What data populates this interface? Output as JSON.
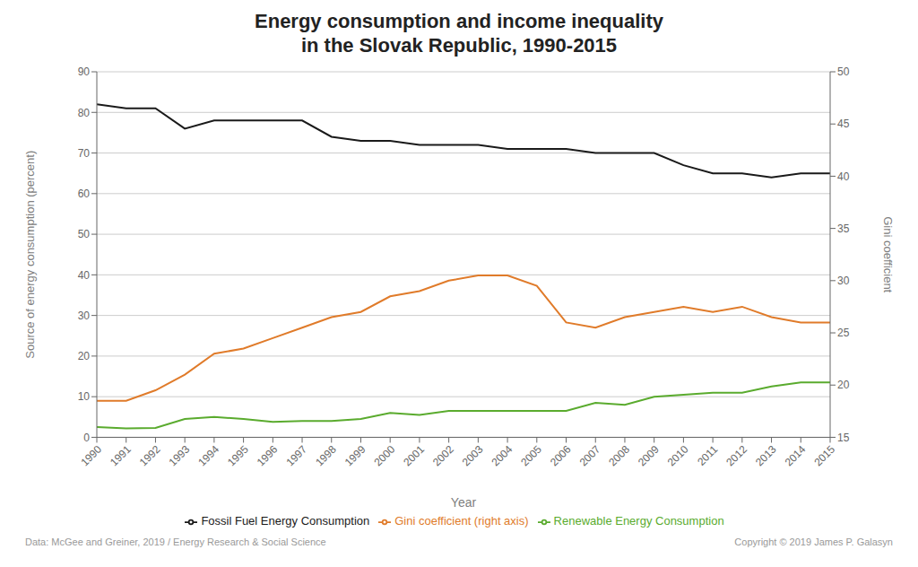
{
  "chart_data": {
    "type": "line",
    "title": "Energy consumption and income inequality\nin the Slovak Republic, 1990-2015",
    "xlabel": "Year",
    "ylabel": "Source of energy consumption (percent)",
    "y2label": "Gini coefficient",
    "x": [
      1990,
      1991,
      1992,
      1993,
      1994,
      1995,
      1996,
      1997,
      1998,
      1999,
      2000,
      2001,
      2002,
      2003,
      2004,
      2005,
      2006,
      2007,
      2008,
      2009,
      2010,
      2011,
      2012,
      2013,
      2014,
      2015
    ],
    "xlim": [
      1990,
      2015
    ],
    "xticks": [
      1990,
      1991,
      1992,
      1993,
      1994,
      1995,
      1996,
      1997,
      1998,
      1999,
      2000,
      2001,
      2002,
      2003,
      2004,
      2005,
      2006,
      2007,
      2008,
      2009,
      2010,
      2011,
      2012,
      2013,
      2014,
      2015
    ],
    "ylim": [
      0,
      90
    ],
    "yticks": [
      0,
      10,
      20,
      30,
      40,
      50,
      60,
      70,
      80,
      90
    ],
    "y2lim": [
      15,
      50
    ],
    "y2ticks": [
      15,
      20,
      25,
      30,
      35,
      40,
      45,
      50
    ],
    "grid": true,
    "legend": "bottom",
    "series": [
      {
        "name": "Renewable Energy Consumption",
        "color": "#5aab2e",
        "values": [
          2.5,
          2.2,
          2.3,
          4.5,
          5.0,
          4.5,
          3.8,
          4.0,
          4.0,
          4.5,
          6.0,
          5.5,
          6.5,
          6.5,
          6.5,
          6.5,
          6.5,
          8.5,
          8.0,
          10.0,
          10.5,
          11.0,
          11.0,
          12.5,
          13.5,
          13.5
        ]
      },
      {
        "name": "Fossil Fuel Energy Consumption",
        "color": "#1a1a1a",
        "values": [
          82,
          81,
          81,
          76,
          78,
          78,
          78,
          78,
          74,
          73,
          73,
          72,
          72,
          72,
          71,
          71,
          71,
          70,
          70,
          70,
          67,
          65,
          65,
          64,
          65,
          65
        ]
      },
      {
        "name": "Gini coefficient (right axis)",
        "color": "#e07b2a",
        "axis": "y2",
        "values": [
          18.5,
          18.5,
          19.5,
          21.0,
          23.0,
          23.5,
          24.5,
          25.5,
          26.5,
          27.0,
          28.5,
          29.0,
          30.0,
          30.5,
          30.5,
          29.5,
          26.0,
          25.5,
          26.5,
          27.0,
          27.5,
          27.0,
          27.5,
          26.5,
          26.0,
          26.0
        ]
      }
    ],
    "annotations": [
      "Data: McGee and Greiner, 2019 / Energy Research & Social Science",
      "Copyright © 2019 James P. Galasyn"
    ]
  }
}
